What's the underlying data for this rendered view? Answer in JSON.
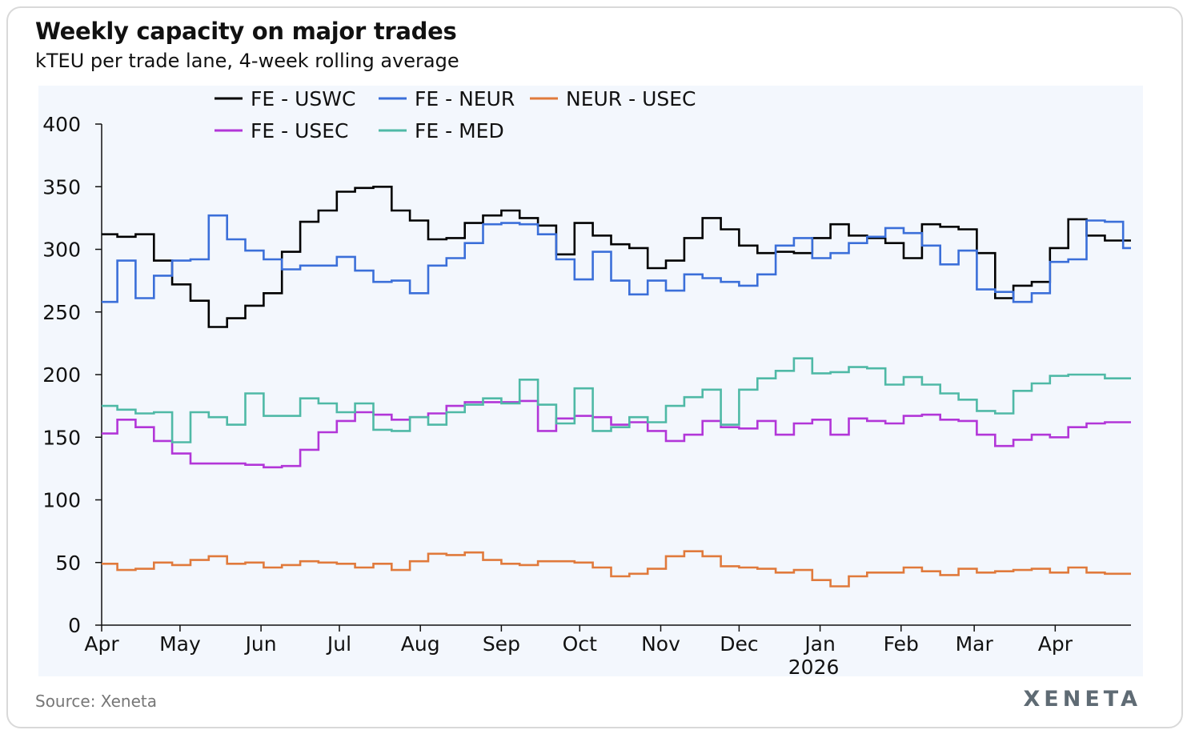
{
  "header": {
    "title": "Weekly capacity on major trades",
    "subtitle": "kTEU per trade lane, 4-week rolling average"
  },
  "footer": {
    "source": "Source: Xeneta",
    "brand": "XENETA"
  },
  "chart_data": {
    "type": "line",
    "step": true,
    "title": "Weekly capacity on major trades",
    "subtitle": "kTEU per trade lane, 4-week rolling average",
    "xlabel": "",
    "ylabel": "",
    "ylim": [
      0,
      400
    ],
    "yticks": [
      0,
      50,
      100,
      150,
      200,
      250,
      300,
      350,
      400
    ],
    "x_month_labels": [
      "Apr",
      "May",
      "Jun",
      "Jul",
      "Aug",
      "Sep",
      "Oct",
      "Nov",
      "Dec",
      "Jan",
      "Feb",
      "Mar",
      "Apr"
    ],
    "x_year_label": "2026",
    "x_start": "2025-04-01",
    "x_end": "2026-04-30",
    "legend_position": "top",
    "grid": false,
    "background": "#f3f7fd",
    "series": [
      {
        "name": "FE - USWC",
        "color": "#000000",
        "x": [
          "2025-04-01",
          "2025-04-07",
          "2025-04-14",
          "2025-04-21",
          "2025-04-28",
          "2025-05-05",
          "2025-05-12",
          "2025-05-19",
          "2025-05-26",
          "2025-06-02",
          "2025-06-09",
          "2025-06-16",
          "2025-06-23",
          "2025-06-30",
          "2025-07-07",
          "2025-07-14",
          "2025-07-21",
          "2025-07-28",
          "2025-08-04",
          "2025-08-11",
          "2025-08-18",
          "2025-08-25",
          "2025-09-01",
          "2025-09-08",
          "2025-09-15",
          "2025-09-22",
          "2025-09-29",
          "2025-10-06",
          "2025-10-13",
          "2025-10-20",
          "2025-10-27",
          "2025-11-03",
          "2025-11-10",
          "2025-11-17",
          "2025-11-24",
          "2025-12-01",
          "2025-12-08",
          "2025-12-15",
          "2025-12-22",
          "2025-12-29",
          "2026-01-05",
          "2026-01-12",
          "2026-01-19",
          "2026-01-26",
          "2026-02-02",
          "2026-02-09",
          "2026-02-16",
          "2026-02-23",
          "2026-03-02",
          "2026-03-09",
          "2026-03-16",
          "2026-03-23",
          "2026-03-30",
          "2026-04-06",
          "2026-04-13",
          "2026-04-20",
          "2026-04-27"
        ],
        "y": [
          312,
          310,
          312,
          291,
          272,
          259,
          238,
          245,
          255,
          265,
          298,
          322,
          331,
          346,
          349,
          350,
          331,
          323,
          308,
          309,
          321,
          327,
          331,
          325,
          319,
          296,
          321,
          311,
          304,
          301,
          285,
          291,
          309,
          325,
          316,
          303,
          297,
          298,
          297,
          309,
          320,
          311,
          309,
          305,
          293,
          320,
          318,
          316,
          297,
          261,
          271,
          274,
          301,
          324,
          311,
          307,
          307
        ]
      },
      {
        "name": "FE - NEUR",
        "color": "#3b6fd9",
        "x": [
          "2025-04-01",
          "2025-04-07",
          "2025-04-14",
          "2025-04-21",
          "2025-04-28",
          "2025-05-05",
          "2025-05-12",
          "2025-05-19",
          "2025-05-26",
          "2025-06-02",
          "2025-06-09",
          "2025-06-16",
          "2025-06-23",
          "2025-06-30",
          "2025-07-07",
          "2025-07-14",
          "2025-07-21",
          "2025-07-28",
          "2025-08-04",
          "2025-08-11",
          "2025-08-18",
          "2025-08-25",
          "2025-09-01",
          "2025-09-08",
          "2025-09-15",
          "2025-09-22",
          "2025-09-29",
          "2025-10-06",
          "2025-10-13",
          "2025-10-20",
          "2025-10-27",
          "2025-11-03",
          "2025-11-10",
          "2025-11-17",
          "2025-11-24",
          "2025-12-01",
          "2025-12-08",
          "2025-12-15",
          "2025-12-22",
          "2025-12-29",
          "2026-01-05",
          "2026-01-12",
          "2026-01-19",
          "2026-01-26",
          "2026-02-02",
          "2026-02-09",
          "2026-02-16",
          "2026-02-23",
          "2026-03-02",
          "2026-03-09",
          "2026-03-16",
          "2026-03-23",
          "2026-03-30",
          "2026-04-06",
          "2026-04-13",
          "2026-04-20",
          "2026-04-27"
        ],
        "y": [
          258,
          291,
          261,
          279,
          291,
          292,
          327,
          308,
          299,
          292,
          284,
          287,
          287,
          294,
          283,
          274,
          275,
          265,
          287,
          293,
          305,
          320,
          321,
          320,
          312,
          292,
          276,
          298,
          275,
          264,
          275,
          267,
          280,
          277,
          274,
          271,
          280,
          303,
          309,
          293,
          297,
          305,
          310,
          317,
          313,
          303,
          288,
          299,
          268,
          266,
          258,
          265,
          290,
          292,
          323,
          322,
          301
        ]
      },
      {
        "name": "NEUR - USEC",
        "color": "#e07a3c",
        "x": [
          "2025-04-01",
          "2025-04-07",
          "2025-04-14",
          "2025-04-21",
          "2025-04-28",
          "2025-05-05",
          "2025-05-12",
          "2025-05-19",
          "2025-05-26",
          "2025-06-02",
          "2025-06-09",
          "2025-06-16",
          "2025-06-23",
          "2025-06-30",
          "2025-07-07",
          "2025-07-14",
          "2025-07-21",
          "2025-07-28",
          "2025-08-04",
          "2025-08-11",
          "2025-08-18",
          "2025-08-25",
          "2025-09-01",
          "2025-09-08",
          "2025-09-15",
          "2025-09-22",
          "2025-09-29",
          "2025-10-06",
          "2025-10-13",
          "2025-10-20",
          "2025-10-27",
          "2025-11-03",
          "2025-11-10",
          "2025-11-17",
          "2025-11-24",
          "2025-12-01",
          "2025-12-08",
          "2025-12-15",
          "2025-12-22",
          "2025-12-29",
          "2026-01-05",
          "2026-01-12",
          "2026-01-19",
          "2026-01-26",
          "2026-02-02",
          "2026-02-09",
          "2026-02-16",
          "2026-02-23",
          "2026-03-02",
          "2026-03-09",
          "2026-03-16",
          "2026-03-23",
          "2026-03-30",
          "2026-04-06",
          "2026-04-13",
          "2026-04-20",
          "2026-04-27"
        ],
        "y": [
          49,
          44,
          45,
          50,
          48,
          52,
          55,
          49,
          50,
          46,
          48,
          51,
          50,
          49,
          46,
          49,
          44,
          51,
          57,
          56,
          58,
          52,
          49,
          48,
          51,
          51,
          50,
          46,
          39,
          41,
          45,
          55,
          59,
          55,
          47,
          46,
          45,
          42,
          44,
          36,
          31,
          39,
          42,
          42,
          46,
          43,
          40,
          45,
          42,
          43,
          44,
          45,
          42,
          46,
          42,
          41,
          41
        ]
      },
      {
        "name": "FE - USEC",
        "color": "#b236d8",
        "x": [
          "2025-04-01",
          "2025-04-07",
          "2025-04-14",
          "2025-04-21",
          "2025-04-28",
          "2025-05-05",
          "2025-05-12",
          "2025-05-19",
          "2025-05-26",
          "2025-06-02",
          "2025-06-09",
          "2025-06-16",
          "2025-06-23",
          "2025-06-30",
          "2025-07-07",
          "2025-07-14",
          "2025-07-21",
          "2025-07-28",
          "2025-08-04",
          "2025-08-11",
          "2025-08-18",
          "2025-08-25",
          "2025-09-01",
          "2025-09-08",
          "2025-09-15",
          "2025-09-22",
          "2025-09-29",
          "2025-10-06",
          "2025-10-13",
          "2025-10-20",
          "2025-10-27",
          "2025-11-03",
          "2025-11-10",
          "2025-11-17",
          "2025-11-24",
          "2025-12-01",
          "2025-12-08",
          "2025-12-15",
          "2025-12-22",
          "2025-12-29",
          "2026-01-05",
          "2026-01-12",
          "2026-01-19",
          "2026-01-26",
          "2026-02-02",
          "2026-02-09",
          "2026-02-16",
          "2026-02-23",
          "2026-03-02",
          "2026-03-09",
          "2026-03-16",
          "2026-03-23",
          "2026-03-30",
          "2026-04-06",
          "2026-04-13",
          "2026-04-20",
          "2026-04-27"
        ],
        "y": [
          153,
          164,
          158,
          147,
          137,
          129,
          129,
          129,
          128,
          126,
          127,
          140,
          154,
          163,
          170,
          168,
          164,
          166,
          169,
          175,
          178,
          178,
          178,
          179,
          155,
          165,
          167,
          166,
          160,
          162,
          155,
          147,
          152,
          163,
          158,
          157,
          163,
          152,
          161,
          164,
          152,
          165,
          163,
          161,
          167,
          168,
          164,
          163,
          152,
          143,
          148,
          152,
          150,
          158,
          161,
          162,
          162
        ]
      },
      {
        "name": "FE - MED",
        "color": "#4fb9a6",
        "x": [
          "2025-04-01",
          "2025-04-07",
          "2025-04-14",
          "2025-04-21",
          "2025-04-28",
          "2025-05-05",
          "2025-05-12",
          "2025-05-19",
          "2025-05-26",
          "2025-06-02",
          "2025-06-09",
          "2025-06-16",
          "2025-06-23",
          "2025-06-30",
          "2025-07-07",
          "2025-07-14",
          "2025-07-21",
          "2025-07-28",
          "2025-08-04",
          "2025-08-11",
          "2025-08-18",
          "2025-08-25",
          "2025-09-01",
          "2025-09-08",
          "2025-09-15",
          "2025-09-22",
          "2025-09-29",
          "2025-10-06",
          "2025-10-13",
          "2025-10-20",
          "2025-10-27",
          "2025-11-03",
          "2025-11-10",
          "2025-11-17",
          "2025-11-24",
          "2025-12-01",
          "2025-12-08",
          "2025-12-15",
          "2025-12-22",
          "2025-12-29",
          "2026-01-05",
          "2026-01-12",
          "2026-01-19",
          "2026-01-26",
          "2026-02-02",
          "2026-02-09",
          "2026-02-16",
          "2026-02-23",
          "2026-03-02",
          "2026-03-09",
          "2026-03-16",
          "2026-03-23",
          "2026-03-30",
          "2026-04-06",
          "2026-04-13",
          "2026-04-20",
          "2026-04-27"
        ],
        "y": [
          175,
          172,
          169,
          170,
          146,
          170,
          166,
          160,
          185,
          167,
          167,
          181,
          177,
          170,
          177,
          156,
          155,
          166,
          160,
          170,
          176,
          181,
          177,
          196,
          176,
          161,
          189,
          155,
          158,
          166,
          162,
          175,
          182,
          188,
          160,
          188,
          197,
          203,
          213,
          201,
          202,
          206,
          205,
          192,
          198,
          192,
          185,
          180,
          171,
          169,
          187,
          193,
          199,
          200,
          200,
          197,
          197
        ]
      }
    ]
  }
}
